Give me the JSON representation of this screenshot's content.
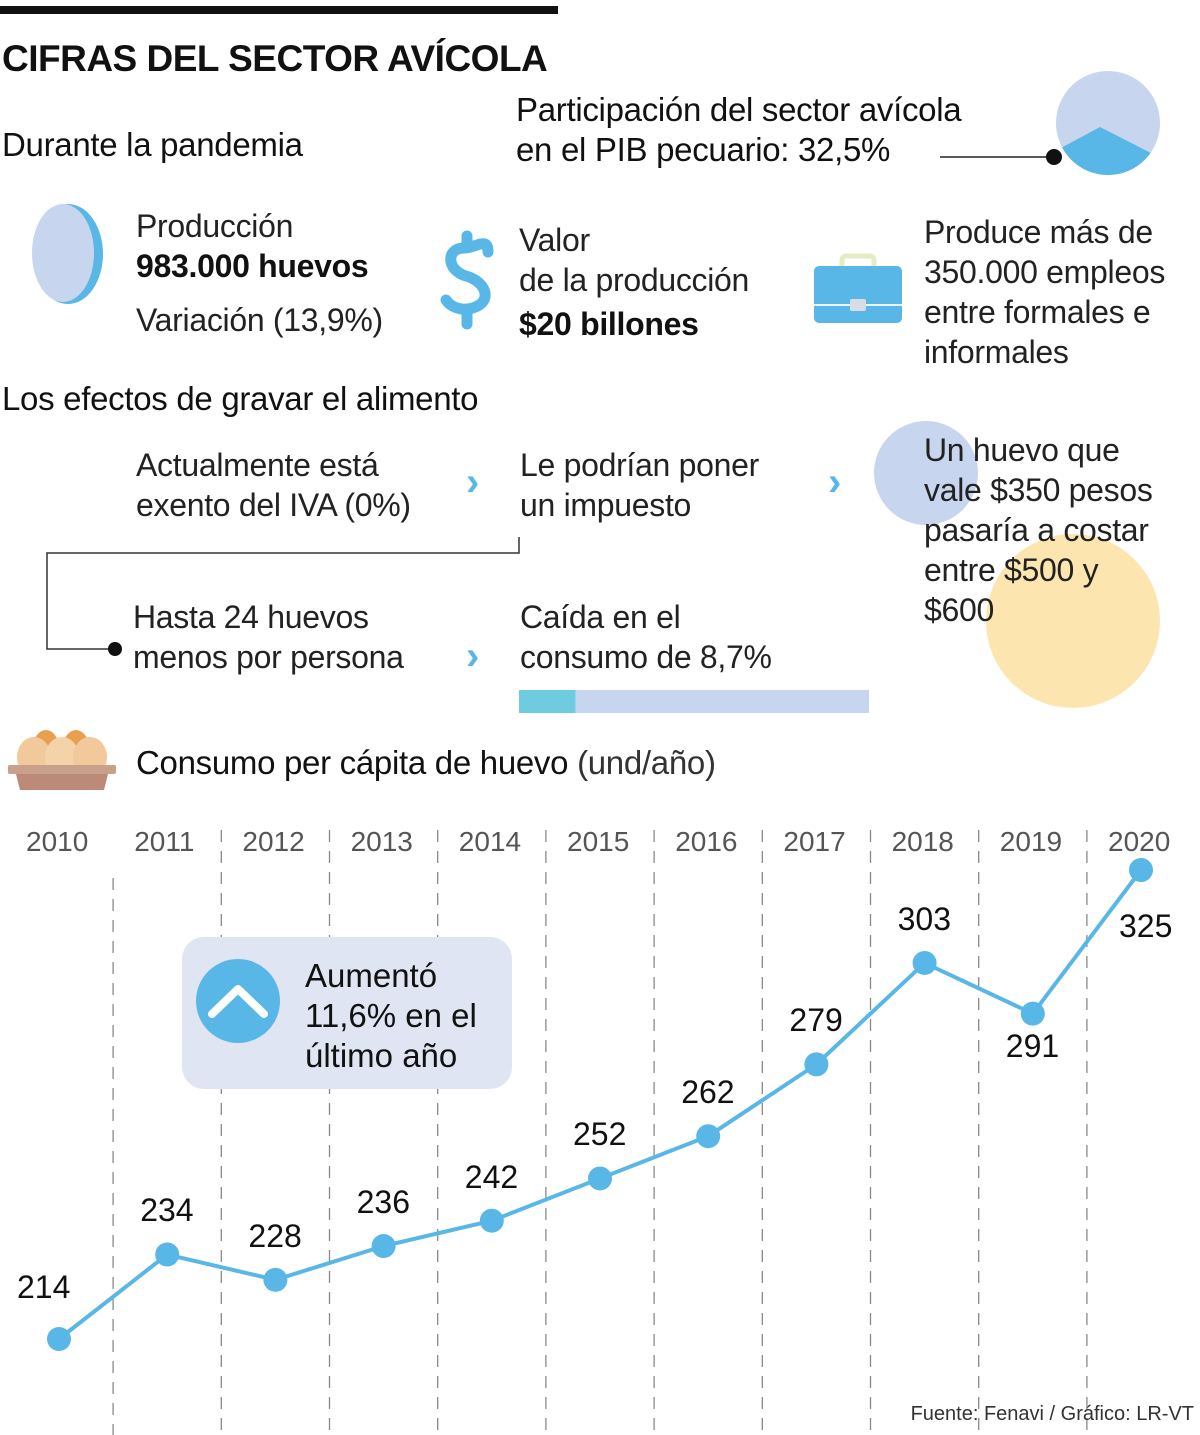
{
  "header": {
    "title": "CIFRAS DEL SECTOR AVÍCOLA",
    "subtitle_pandemia": "Durante la pandemia"
  },
  "pib": {
    "line1": "Participación del sector avícola",
    "line2": "en el PIB pecuario: 32,5%",
    "share_percent": 32.5,
    "colors": {
      "share": "#58b7e6",
      "rest": "#c7d5ee"
    }
  },
  "stats": {
    "produccion": {
      "label": "Producción",
      "value": "983.000 huevos",
      "variation": "Variación (13,9%)"
    },
    "valor": {
      "line1": "Valor",
      "line2": "de la producción",
      "value": "$20 billones"
    },
    "empleos": {
      "line1": "Produce más de",
      "line2": "350.000 empleos",
      "line3": "entre formales e",
      "line4": "informales"
    }
  },
  "effects": {
    "heading": "Los efectos de gravar el alimento",
    "step1": {
      "line1": "Actualmente está",
      "line2": "exento del IVA (0%)"
    },
    "step2": {
      "line1": "Le podrían poner",
      "line2": "un impuesto"
    },
    "step3": {
      "line1": "Un huevo que",
      "line2": "vale $350 pesos",
      "line3": "pasaría a costar",
      "line4": "entre $500 y",
      "line5": "$600"
    },
    "step4": {
      "line1": "Hasta 24 huevos",
      "line2": "menos por persona"
    },
    "step5": {
      "line1": "Caída en el",
      "line2": "consumo de 8,7%"
    },
    "drop_percent": 8.7,
    "chevron": "›"
  },
  "chart_data": {
    "type": "line",
    "title": "Consumo per cápita de huevo",
    "unit_label": "(und/año)",
    "xlabel": "",
    "ylabel": "",
    "categories": [
      "2010",
      "2011",
      "2012",
      "2013",
      "2014",
      "2015",
      "2016",
      "2017",
      "2018",
      "2019",
      "2020"
    ],
    "series": [
      {
        "name": "Consumo per cápita de huevo",
        "values": [
          214,
          234,
          228,
          236,
          242,
          252,
          262,
          279,
          303,
          291,
          325
        ],
        "color": "#58b7e6"
      }
    ],
    "ylim": [
      200,
      330
    ],
    "grid": "vertical-dashed",
    "legend": "none",
    "annotation": {
      "line1": "Aumentó",
      "line2": "11,6% en el",
      "line3": "último año"
    }
  },
  "footer": {
    "source": "Fuente: Fenavi / Gráfico: LR-VT"
  }
}
